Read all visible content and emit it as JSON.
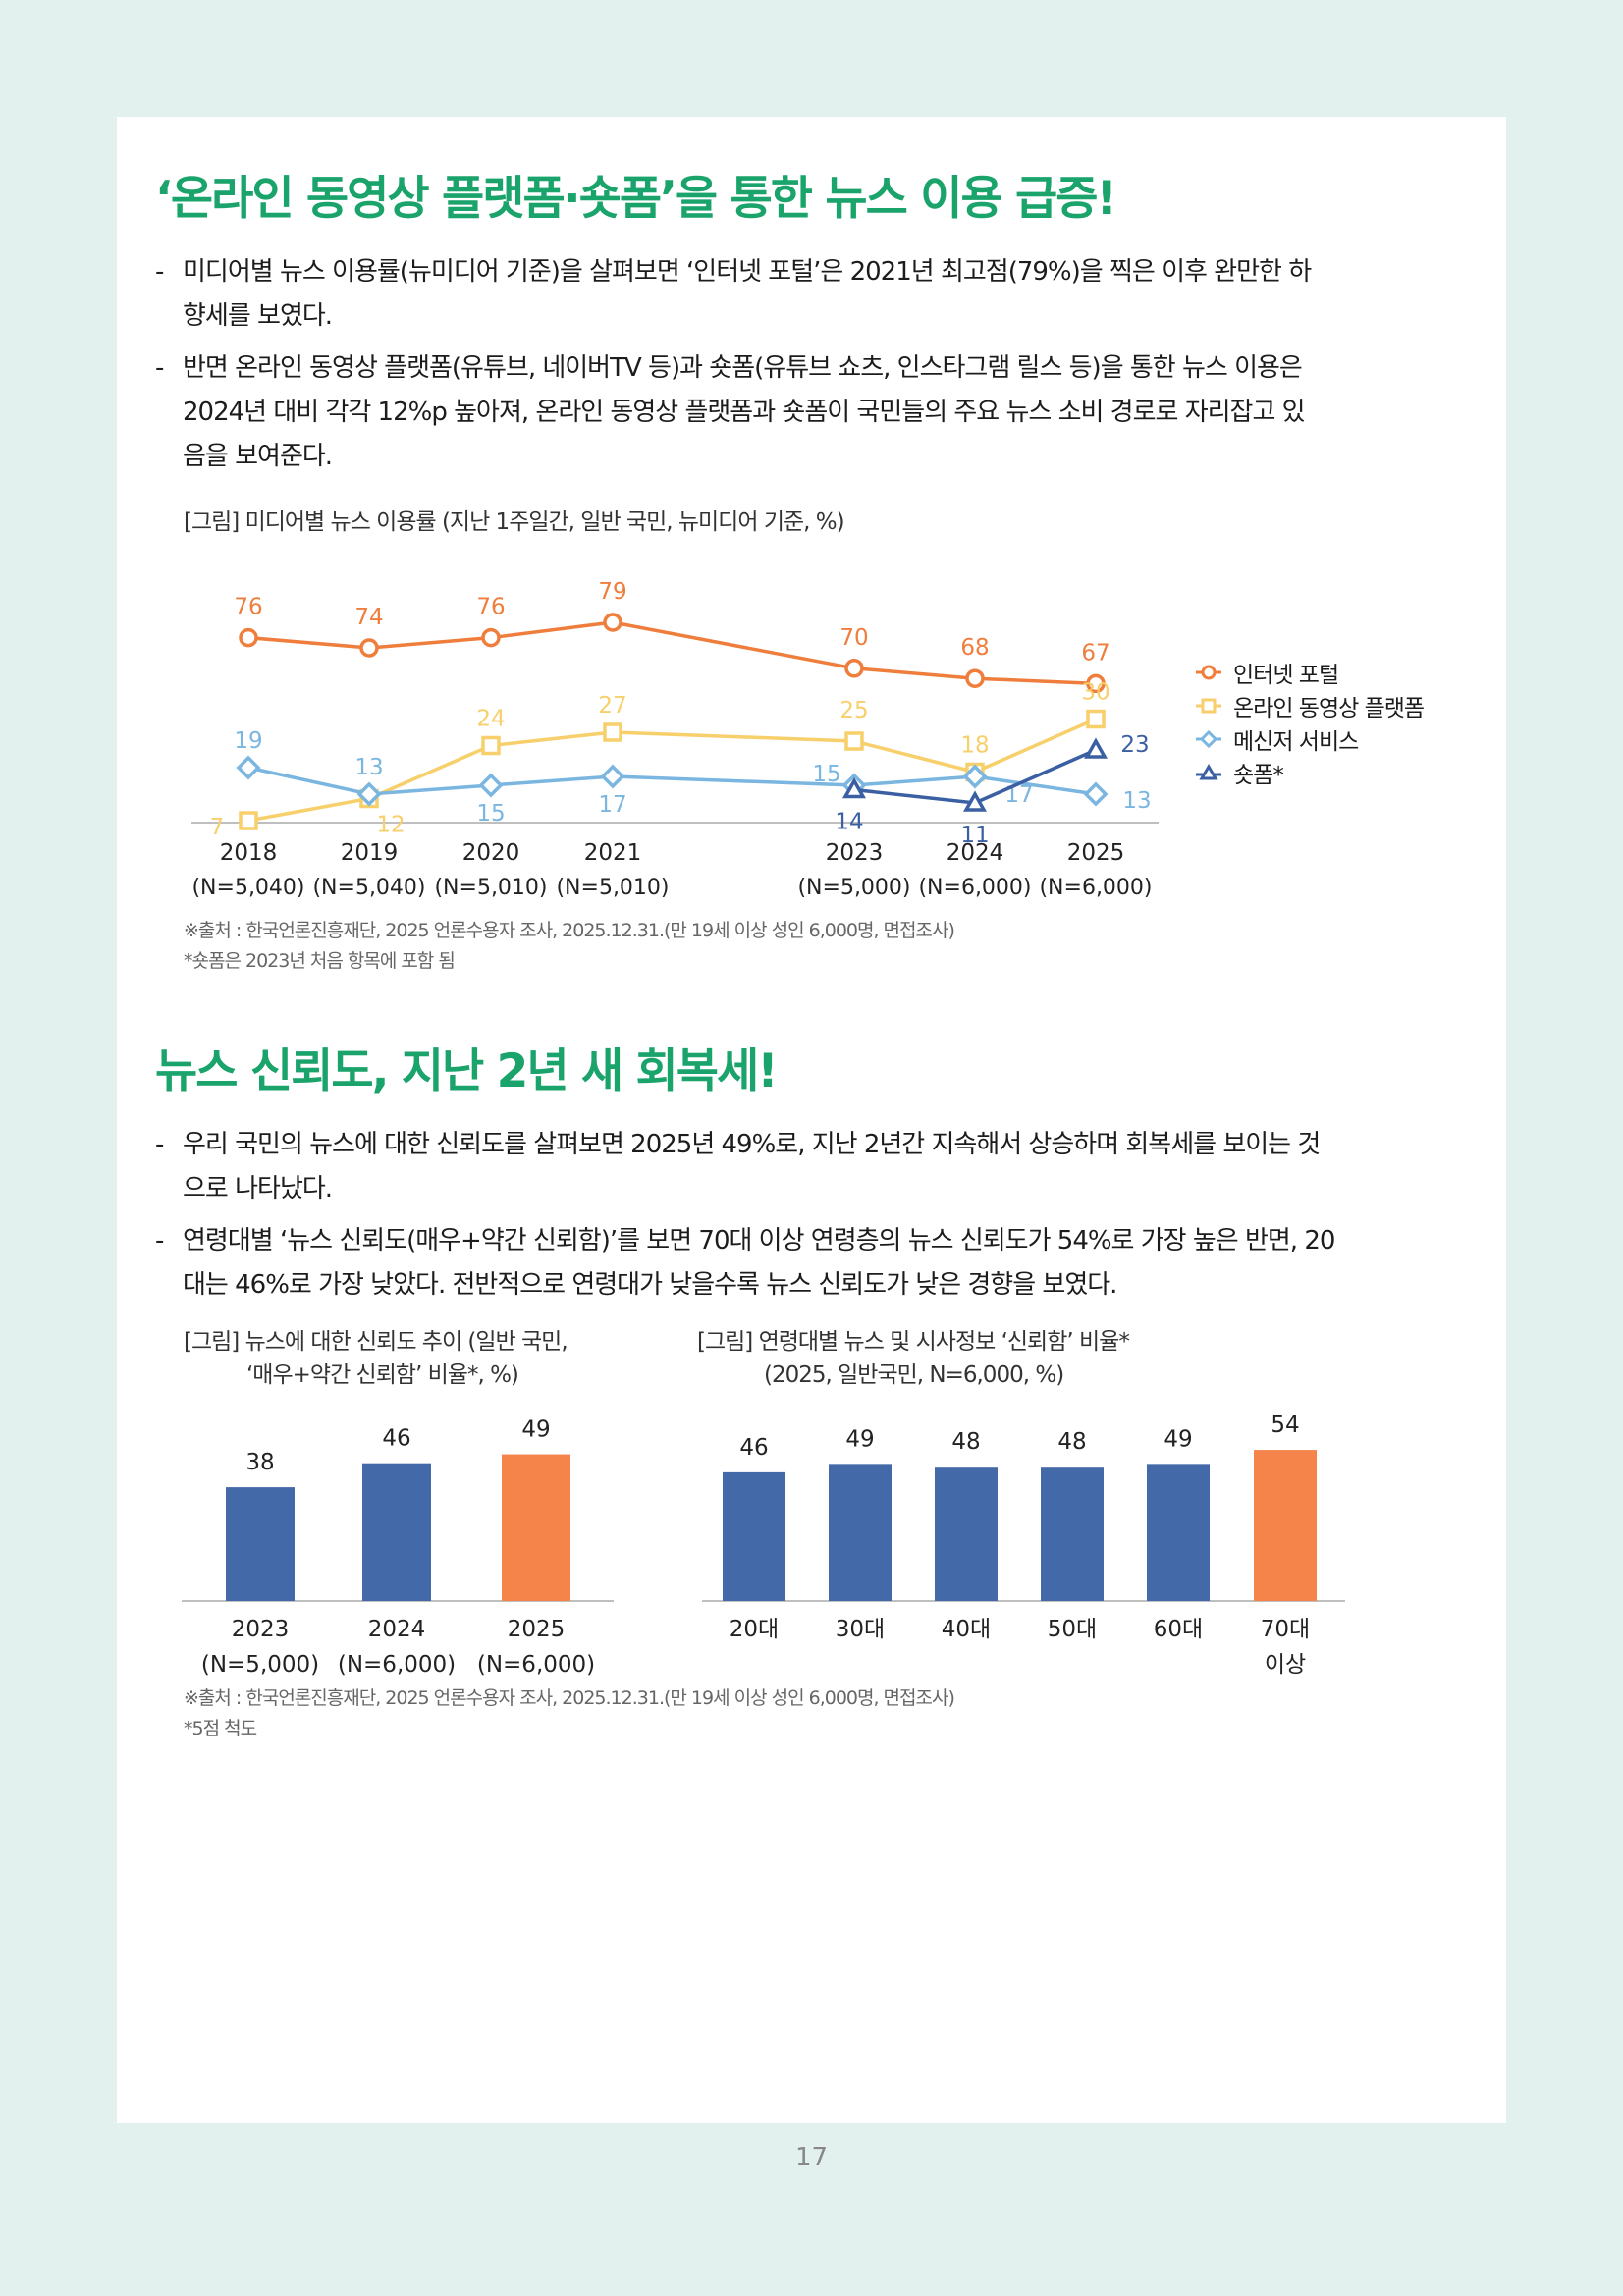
{
  "page_number": "17",
  "section1": {
    "title": "‘온라인 동영상 플랫폼·숏폼’을 통한 뉴스 이용 급증!",
    "bullets": [
      {
        "dash": "-",
        "lines": [
          "미디어별 뉴스 이용률(뉴미디어 기준)을 살펴보면 ‘인터넷 포털’은 2021년 최고점(79%)을 찍은 이후 완만한 하",
          "향세를 보였다."
        ]
      },
      {
        "dash": "-",
        "lines": [
          "반면 온라인 동영상 플랫폼(유튜브, 네이버TV 등)과 숏폼(유튜브 쇼츠, 인스타그램 릴스 등)을 통한 뉴스 이용은",
          "2024년 대비 각각 12%p 높아져, 온라인 동영상 플랫폼과 숏폼이 국민들의 주요 뉴스 소비 경로로 자리잡고 있",
          "음을 보여준다."
        ]
      }
    ],
    "figure_caption": "[그림] 미디어별 뉴스 이용률 (지난 1주일간, 일반 국민, 뉴미디어 기준, %)",
    "source": "※출처 : 한국언론진흥재단, 2025 언론수용자 조사, 2025.12.31.(만 19세 이상 성인 6,000명, 면접조사)",
    "note": "*숏폼은 2023년 처음 항목에 포함 됨"
  },
  "section2": {
    "title": "뉴스 신뢰도, 지난 2년 새 회복세!",
    "bullets": [
      {
        "dash": "-",
        "lines": [
          "우리 국민의 뉴스에 대한 신뢰도를 살펴보면 2025년 49%로, 지난 2년간 지속해서 상승하며 회복세를 보이는 것",
          "으로 나타났다."
        ]
      },
      {
        "dash": "-",
        "lines": [
          "연령대별 ‘뉴스 신뢰도(매우+약간 신뢰함)’를 보면 70대 이상 연령층의 뉴스 신뢰도가 54%로 가장 높은 반면, 20",
          "대는 46%로 가장 낮았다. 전반적으로 연령대가 낮을수록 뉴스 신뢰도가 낮은 경향을 보였다."
        ]
      }
    ],
    "figure1_caption": [
      "[그림] 뉴스에 대한 신뢰도 추이 (일반 국민,",
      "‘매우+약간 신뢰함’ 비율*, %)"
    ],
    "figure2_caption": [
      "[그림] 연령대별 뉴스 및 시사정보 ‘신뢰함’ 비율*",
      "(2025, 일반국민, N=6,000, %)"
    ],
    "source": "※출처 : 한국언론진흥재단, 2025 언론수용자 조사, 2025.12.31.(만 19세 이상 성인 6,000명, 면접조사)",
    "note": "*5점 척도"
  },
  "colors": {
    "title_green": "#1aa36b",
    "portal": "#ef7d3c",
    "video": "#f7cf6b",
    "messenger": "#7ab6e0",
    "shortform": "#3b5fa3",
    "bar_blue": "#4469a8",
    "bar_orange": "#f4844a"
  },
  "chart_data": [
    {
      "type": "line",
      "x": [
        "2018",
        "2019",
        "2020",
        "2021",
        "2023",
        "2024",
        "2025"
      ],
      "x_sublabels": [
        "(N=5,040)",
        "(N=5,040)",
        "(N=5,010)",
        "(N=5,010)",
        "(N=5,000)",
        "(N=6,000)",
        "(N=6,000)"
      ],
      "series": [
        {
          "name": "인터넷 포털",
          "marker": "circle",
          "color": "#ef7d3c",
          "values": [
            76,
            74,
            76,
            79,
            70,
            68,
            67
          ]
        },
        {
          "name": "온라인 동영상 플랫폼",
          "marker": "square",
          "color": "#f7cf6b",
          "values": [
            7,
            12,
            24,
            27,
            25,
            18,
            30
          ]
        },
        {
          "name": "메신저 서비스",
          "marker": "diamond",
          "color": "#7ab6e0",
          "values": [
            19,
            13,
            15,
            17,
            15,
            17,
            13
          ]
        },
        {
          "name": "숏폼*",
          "marker": "triangle",
          "color": "#3b5fa3",
          "values": [
            null,
            null,
            null,
            null,
            14,
            11,
            23
          ]
        }
      ],
      "legend_position": "right",
      "grid": false
    },
    {
      "type": "bar",
      "categories": [
        "2023",
        "2024",
        "2025"
      ],
      "category_sublabels": [
        "(N=5,000)",
        "(N=6,000)",
        "(N=6,000)"
      ],
      "values": [
        38,
        46,
        49
      ],
      "bar_colors": [
        "#4469a8",
        "#4469a8",
        "#f4844a"
      ],
      "ylim": [
        0,
        60
      ]
    },
    {
      "type": "bar",
      "categories": [
        "20대",
        "30대",
        "40대",
        "50대",
        "60대",
        "70대"
      ],
      "category_sublabels": [
        "",
        "",
        "",
        "",
        "",
        "이상"
      ],
      "values": [
        46,
        49,
        48,
        48,
        49,
        54
      ],
      "bar_colors": [
        "#4469a8",
        "#4469a8",
        "#4469a8",
        "#4469a8",
        "#4469a8",
        "#f4844a"
      ],
      "ylim": [
        0,
        60
      ]
    }
  ]
}
